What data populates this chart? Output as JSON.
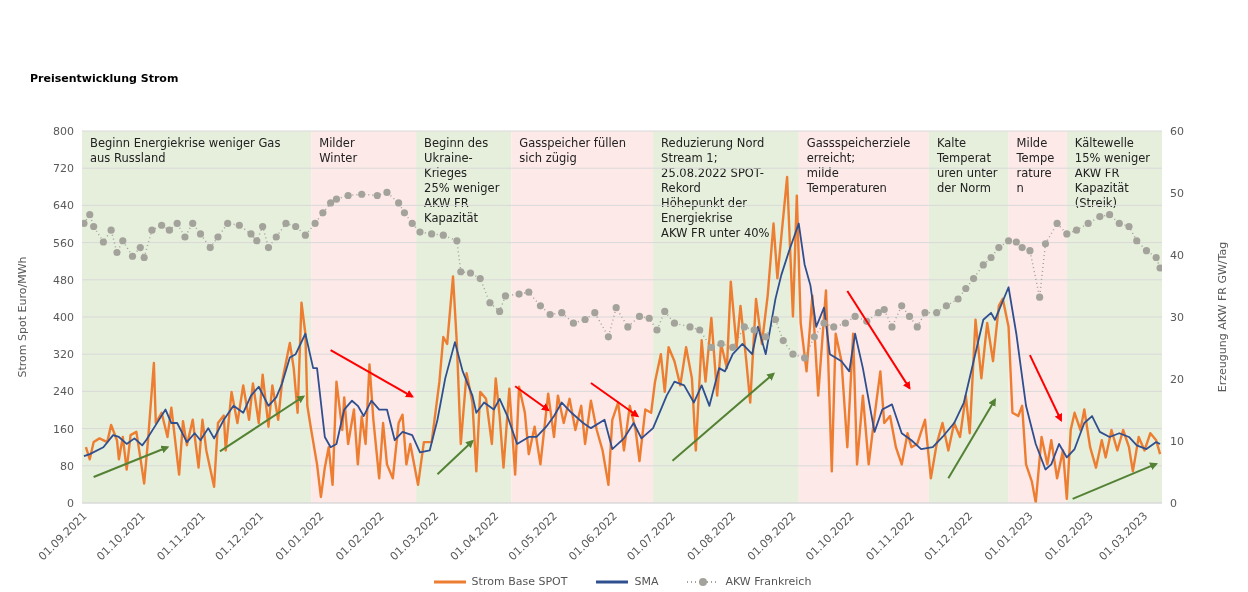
{
  "chart_data": {
    "type": "line",
    "title": "Preisentwicklung Strom",
    "ylabel": "Strom Spot Euro/MWh",
    "y2label": "Erzeugung AKW FR GW/Tag",
    "xlim": [
      "2021-09-01",
      "2023-03-11"
    ],
    "xticks": [
      {
        "value": "2021-09-01",
        "label": "01.09.2021"
      },
      {
        "value": "2021-10-01",
        "label": "01.10.2021"
      },
      {
        "value": "2021-11-01",
        "label": "01.11.2021"
      },
      {
        "value": "2021-12-01",
        "label": "01.12.2021"
      },
      {
        "value": "2022-01-01",
        "label": "01.01.2022"
      },
      {
        "value": "2022-02-01",
        "label": "01.02.2022"
      },
      {
        "value": "2022-03-01",
        "label": "01.03.2022"
      },
      {
        "value": "2022-04-01",
        "label": "01.04.2022"
      },
      {
        "value": "2022-05-01",
        "label": "01.05.2022"
      },
      {
        "value": "2022-06-01",
        "label": "01.06.2022"
      },
      {
        "value": "2022-07-01",
        "label": "01.07.2022"
      },
      {
        "value": "2022-08-01",
        "label": "01.08.2022"
      },
      {
        "value": "2022-09-01",
        "label": "01.09.2022"
      },
      {
        "value": "2022-10-01",
        "label": "01.10.2022"
      },
      {
        "value": "2022-11-01",
        "label": "01.11.2022"
      },
      {
        "value": "2022-12-01",
        "label": "01.12.2022"
      },
      {
        "value": "2023-01-01",
        "label": "01.01.2023"
      },
      {
        "value": "2023-02-01",
        "label": "01.02.2023"
      },
      {
        "value": "2023-03-01",
        "label": "01.03.2023"
      }
    ],
    "ylim": [
      0,
      800
    ],
    "yticks": [
      0,
      80,
      160,
      240,
      320,
      400,
      480,
      560,
      640,
      720,
      800
    ],
    "y2lim": [
      0,
      60
    ],
    "y2ticks": [
      0,
      10,
      20,
      30,
      40,
      50,
      60
    ],
    "grid": "y",
    "legend": "bottom",
    "bands": [
      {
        "axis": "x",
        "from": "2021-09-01",
        "to": "2021-12-28",
        "label": "Beginn Energiekrise weniger Gas\naus Russland",
        "color": "#e6efdc"
      },
      {
        "axis": "x",
        "from": "2021-12-28",
        "to": "2022-02-20",
        "label": "Milder\nWinter",
        "color": "#fde9e8"
      },
      {
        "axis": "x",
        "from": "2022-02-20",
        "to": "2022-04-10",
        "label": "Beginn des\nUkraine-\nKrieges\n25% weniger\nAKW FR\nKapazität",
        "color": "#e6efdc"
      },
      {
        "axis": "x",
        "from": "2022-04-10",
        "to": "2022-06-22",
        "label": "Gasspeicher füllen\nsich zügig",
        "color": "#fde9e8"
      },
      {
        "axis": "x",
        "from": "2022-06-22",
        "to": "2022-09-05",
        "label": "Reduzierung Nord\nStream 1;\n25.08.2022 SPOT-\nRekord\nHöhepunkt der\nEnergiekrise\nAKW FR unter 40%",
        "color": "#e6efdc"
      },
      {
        "axis": "x",
        "from": "2022-09-05",
        "to": "2022-11-11",
        "label": "Gassspeicherziele\nerreicht;\nmilde\nTemperaturen",
        "color": "#fde9e8"
      },
      {
        "axis": "x",
        "from": "2022-11-11",
        "to": "2022-12-22",
        "label": "Kalte\nTemperat\nuren unter\nder Norm",
        "color": "#e6efdc"
      },
      {
        "axis": "x",
        "from": "2022-12-22",
        "to": "2023-01-21",
        "label": "Milde\nTempe\nrature\nn",
        "color": "#fde9e8"
      },
      {
        "axis": "x",
        "from": "2023-01-21",
        "to": "2023-03-11",
        "label": "Kältewelle\n15% weniger\nAKW FR\nKapazität\n(Streik)",
        "color": "#e6efdc"
      }
    ],
    "series": [
      {
        "name": "Strom Base SPOT",
        "color": "#ed7d31",
        "x": [
          "2021-09-03",
          "2021-09-05",
          "2021-09-07",
          "2021-09-10",
          "2021-09-14",
          "2021-09-16",
          "2021-09-19",
          "2021-09-20",
          "2021-09-22",
          "2021-09-24",
          "2021-09-26",
          "2021-09-29",
          "2021-10-01",
          "2021-10-03",
          "2021-10-05",
          "2021-10-08",
          "2021-10-09",
          "2021-10-12",
          "2021-10-15",
          "2021-10-17",
          "2021-10-21",
          "2021-10-23",
          "2021-10-25",
          "2021-10-28",
          "2021-10-31",
          "2021-11-02",
          "2021-11-04",
          "2021-11-08",
          "2021-11-10",
          "2021-11-13",
          "2021-11-14",
          "2021-11-17",
          "2021-11-20",
          "2021-11-23",
          "2021-11-26",
          "2021-11-28",
          "2021-12-01",
          "2021-12-03",
          "2021-12-06",
          "2021-12-08",
          "2021-12-11",
          "2021-12-13",
          "2021-12-17",
          "2021-12-19",
          "2021-12-21",
          "2021-12-23",
          "2021-12-25",
          "2021-12-26",
          "2021-12-28",
          "2021-12-31",
          "2022-01-02",
          "2022-01-04",
          "2022-01-06",
          "2022-01-08",
          "2022-01-10",
          "2022-01-13",
          "2022-01-14",
          "2022-01-16",
          "2022-01-19",
          "2022-01-21",
          "2022-01-23",
          "2022-01-25",
          "2022-01-27",
          "2022-01-29",
          "2022-02-01",
          "2022-02-03",
          "2022-02-05",
          "2022-02-08",
          "2022-02-11",
          "2022-02-13",
          "2022-02-15",
          "2022-02-17",
          "2022-02-19",
          "2022-02-21",
          "2022-02-24",
          "2022-02-28",
          "2022-03-04",
          "2022-03-06",
          "2022-03-08",
          "2022-03-11",
          "2022-03-13",
          "2022-03-15",
          "2022-03-18",
          "2022-03-21",
          "2022-03-23",
          "2022-03-25",
          "2022-03-28",
          "2022-03-31",
          "2022-04-02",
          "2022-04-04",
          "2022-04-06",
          "2022-04-09",
          "2022-04-12",
          "2022-04-14",
          "2022-04-17",
          "2022-04-19",
          "2022-04-22",
          "2022-04-25",
          "2022-04-29",
          "2022-05-02",
          "2022-05-04",
          "2022-05-07",
          "2022-05-10",
          "2022-05-13",
          "2022-05-16",
          "2022-05-18",
          "2022-05-21",
          "2022-05-24",
          "2022-05-27",
          "2022-05-30",
          "2022-06-01",
          "2022-06-04",
          "2022-06-07",
          "2022-06-10",
          "2022-06-13",
          "2022-06-15",
          "2022-06-18",
          "2022-06-21",
          "2022-06-23",
          "2022-06-26",
          "2022-06-28",
          "2022-06-30",
          "2022-07-03",
          "2022-07-06",
          "2022-07-09",
          "2022-07-12",
          "2022-07-14",
          "2022-07-17",
          "2022-07-19",
          "2022-07-22",
          "2022-07-25",
          "2022-07-27",
          "2022-07-30",
          "2022-08-01",
          "2022-08-04",
          "2022-08-06",
          "2022-08-09",
          "2022-08-11",
          "2022-08-14",
          "2022-08-17",
          "2022-08-20",
          "2022-08-23",
          "2022-08-25",
          "2022-08-27",
          "2022-08-30",
          "2022-09-02",
          "2022-09-04",
          "2022-09-06",
          "2022-09-09",
          "2022-09-12",
          "2022-09-15",
          "2022-09-19",
          "2022-09-22",
          "2022-09-24",
          "2022-09-27",
          "2022-09-30",
          "2022-10-03",
          "2022-10-05",
          "2022-10-08",
          "2022-10-11",
          "2022-10-14",
          "2022-10-17",
          "2022-10-19",
          "2022-10-22",
          "2022-10-25",
          "2022-10-28",
          "2022-10-31",
          "2022-11-02",
          "2022-11-05",
          "2022-11-09",
          "2022-11-12",
          "2022-11-15",
          "2022-11-18",
          "2022-11-21",
          "2022-11-24",
          "2022-11-27",
          "2022-11-30",
          "2022-12-02",
          "2022-12-05",
          "2022-12-08",
          "2022-12-11",
          "2022-12-14",
          "2022-12-17",
          "2022-12-19",
          "2022-12-22",
          "2022-12-24",
          "2022-12-27",
          "2022-12-29",
          "2022-12-31",
          "2023-01-03",
          "2023-01-05",
          "2023-01-08",
          "2023-01-11",
          "2023-01-13",
          "2023-01-16",
          "2023-01-19",
          "2023-01-21",
          "2023-01-23",
          "2023-01-25",
          "2023-01-28",
          "2023-01-30",
          "2023-02-02",
          "2023-02-05",
          "2023-02-08",
          "2023-02-10",
          "2023-02-13",
          "2023-02-16",
          "2023-02-19",
          "2023-02-22",
          "2023-02-24",
          "2023-02-27",
          "2023-03-02",
          "2023-03-05",
          "2023-03-08",
          "2023-03-10"
        ],
        "values": [
          120,
          94,
          131,
          139,
          131,
          168,
          135,
          94,
          142,
          72,
          146,
          153,
          98,
          42,
          135,
          301,
          172,
          194,
          142,
          205,
          61,
          176,
          124,
          179,
          76,
          179,
          113,
          35,
          172,
          188,
          113,
          239,
          172,
          253,
          179,
          257,
          172,
          276,
          164,
          253,
          179,
          261,
          344,
          290,
          194,
          431,
          364,
          209,
          157,
          83,
          13,
          76,
          120,
          39,
          261,
          157,
          227,
          127,
          201,
          83,
          186,
          127,
          298,
          179,
          53,
          172,
          83,
          53,
          172,
          190,
          83,
          127,
          83,
          39,
          131,
          131,
          261,
          357,
          342,
          487,
          342,
          127,
          279,
          216,
          68,
          239,
          224,
          127,
          268,
          187,
          76,
          246,
          61,
          250,
          194,
          105,
          164,
          83,
          235,
          142,
          231,
          172,
          224,
          157,
          209,
          127,
          220,
          157,
          113,
          39,
          179,
          216,
          113,
          209,
          157,
          90,
          201,
          194,
          261,
          320,
          239,
          335,
          305,
          253,
          335,
          268,
          113,
          350,
          261,
          398,
          231,
          342,
          290,
          476,
          335,
          424,
          305,
          216,
          439,
          342,
          446,
          601,
          483,
          572,
          701,
          401,
          661,
          387,
          283,
          446,
          231,
          457,
          68,
          364,
          305,
          120,
          364,
          83,
          231,
          83,
          187,
          283,
          172,
          187,
          120,
          83,
          150,
          120,
          127,
          179,
          53,
          127,
          172,
          113,
          172,
          142,
          231,
          150,
          394,
          268,
          387,
          305,
          424,
          439,
          379,
          194,
          187,
          209,
          83,
          46,
          1,
          142,
          83,
          135,
          53,
          113,
          9,
          157,
          194,
          157,
          201,
          120,
          76,
          135,
          98,
          157,
          113,
          157,
          120,
          68,
          142,
          113,
          150,
          135,
          105
        ]
      },
      {
        "name": "SMA",
        "color": "#2f4f8f",
        "x": [
          "2021-09-02",
          "2021-09-05",
          "2021-09-12",
          "2021-09-17",
          "2021-09-20",
          "2021-09-24",
          "2021-09-28",
          "2021-10-02",
          "2021-10-04",
          "2021-10-09",
          "2021-10-14",
          "2021-10-17",
          "2021-10-20",
          "2021-10-25",
          "2021-10-29",
          "2021-11-01",
          "2021-11-05",
          "2021-11-08",
          "2021-11-13",
          "2021-11-18",
          "2021-11-23",
          "2021-11-27",
          "2021-12-01",
          "2021-12-06",
          "2021-12-10",
          "2021-12-13",
          "2021-12-17",
          "2021-12-20",
          "2021-12-25",
          "2021-12-29",
          "2021-12-31",
          "2022-01-04",
          "2022-01-07",
          "2022-01-10",
          "2022-01-14",
          "2022-01-18",
          "2022-01-21",
          "2022-01-24",
          "2022-01-28",
          "2022-02-01",
          "2022-02-05",
          "2022-02-09",
          "2022-02-13",
          "2022-02-18",
          "2022-02-22",
          "2022-02-27",
          "2022-03-03",
          "2022-03-07",
          "2022-03-12",
          "2022-03-16",
          "2022-03-21",
          "2022-03-23",
          "2022-03-27",
          "2022-04-01",
          "2022-04-04",
          "2022-04-08",
          "2022-04-13",
          "2022-04-19",
          "2022-04-23",
          "2022-04-28",
          "2022-05-02",
          "2022-05-06",
          "2022-05-11",
          "2022-05-17",
          "2022-05-21",
          "2022-05-28",
          "2022-06-01",
          "2022-06-07",
          "2022-06-12",
          "2022-06-16",
          "2022-06-22",
          "2022-06-26",
          "2022-06-29",
          "2022-07-03",
          "2022-07-08",
          "2022-07-13",
          "2022-07-17",
          "2022-07-21",
          "2022-07-26",
          "2022-07-29",
          "2022-08-02",
          "2022-08-07",
          "2022-08-12",
          "2022-08-15",
          "2022-08-19",
          "2022-08-24",
          "2022-08-27",
          "2022-08-31",
          "2022-09-05",
          "2022-09-08",
          "2022-09-11",
          "2022-09-14",
          "2022-09-18",
          "2022-09-21",
          "2022-09-27",
          "2022-10-01",
          "2022-10-04",
          "2022-10-08",
          "2022-10-14",
          "2022-10-18",
          "2022-10-23",
          "2022-10-28",
          "2022-11-02",
          "2022-11-07",
          "2022-11-13",
          "2022-11-18",
          "2022-11-24",
          "2022-11-29",
          "2022-12-04",
          "2022-12-09",
          "2022-12-13",
          "2022-12-15",
          "2022-12-22",
          "2022-12-26",
          "2022-12-31",
          "2023-01-05",
          "2023-01-10",
          "2023-01-13",
          "2023-01-17",
          "2023-01-21",
          "2023-01-25",
          "2023-01-30",
          "2023-02-03",
          "2023-02-07",
          "2023-02-12",
          "2023-02-17",
          "2023-02-22",
          "2023-02-26",
          "2023-03-03",
          "2023-03-08",
          "2023-03-10"
        ],
        "values": [
          101,
          105,
          120,
          146,
          142,
          127,
          139,
          124,
          135,
          168,
          201,
          172,
          172,
          131,
          150,
          135,
          161,
          139,
          179,
          209,
          194,
          231,
          250,
          209,
          227,
          257,
          313,
          320,
          364,
          290,
          290,
          142,
          120,
          127,
          201,
          220,
          209,
          187,
          220,
          201,
          201,
          135,
          153,
          146,
          109,
          113,
          179,
          268,
          346,
          283,
          231,
          194,
          216,
          201,
          224,
          187,
          127,
          142,
          142,
          164,
          187,
          216,
          194,
          172,
          161,
          179,
          116,
          139,
          172,
          139,
          161,
          201,
          231,
          261,
          253,
          216,
          253,
          209,
          290,
          283,
          320,
          342,
          320,
          379,
          320,
          439,
          490,
          542,
          601,
          513,
          468,
          379,
          420,
          320,
          305,
          283,
          364,
          290,
          153,
          201,
          212,
          150,
          135,
          116,
          120,
          142,
          172,
          216,
          305,
          394,
          409,
          394,
          464,
          364,
          209,
          127,
          72,
          83,
          127,
          98,
          116,
          172,
          187,
          153,
          142,
          150,
          142,
          124,
          116,
          131,
          127
        ]
      },
      {
        "name": "AKW Frankreich",
        "color": "#a3a39b",
        "axis": "y2",
        "marker": "circle",
        "line_style": "dotted",
        "x": [
          "2021-09-02",
          "2021-09-05",
          "2021-09-07",
          "2021-09-12",
          "2021-09-16",
          "2021-09-19",
          "2021-09-22",
          "2021-09-27",
          "2021-10-01",
          "2021-10-03",
          "2021-10-07",
          "2021-10-12",
          "2021-10-16",
          "2021-10-20",
          "2021-10-24",
          "2021-10-28",
          "2021-11-01",
          "2021-11-06",
          "2021-11-10",
          "2021-11-15",
          "2021-11-21",
          "2021-11-27",
          "2021-11-30",
          "2021-12-03",
          "2021-12-06",
          "2021-12-10",
          "2021-12-15",
          "2021-12-20",
          "2021-12-25",
          "2021-12-30",
          "2022-01-03",
          "2022-01-07",
          "2022-01-10",
          "2022-01-16",
          "2022-01-23",
          "2022-01-31",
          "2022-02-05",
          "2022-02-11",
          "2022-02-14",
          "2022-02-18",
          "2022-02-22",
          "2022-02-28",
          "2022-03-06",
          "2022-03-13",
          "2022-03-15",
          "2022-03-20",
          "2022-03-25",
          "2022-03-30",
          "2022-04-04",
          "2022-04-07",
          "2022-04-14",
          "2022-04-19",
          "2022-04-25",
          "2022-04-30",
          "2022-05-06",
          "2022-05-12",
          "2022-05-18",
          "2022-05-23",
          "2022-05-30",
          "2022-06-03",
          "2022-06-09",
          "2022-06-15",
          "2022-06-20",
          "2022-06-24",
          "2022-06-28",
          "2022-07-03",
          "2022-07-11",
          "2022-07-16",
          "2022-07-22",
          "2022-07-27",
          "2022-08-02",
          "2022-08-08",
          "2022-08-13",
          "2022-08-19",
          "2022-08-24",
          "2022-08-28",
          "2022-09-02",
          "2022-09-08",
          "2022-09-13",
          "2022-09-18",
          "2022-09-23",
          "2022-09-29",
          "2022-10-04",
          "2022-10-10",
          "2022-10-16",
          "2022-10-19",
          "2022-10-23",
          "2022-10-28",
          "2022-11-01",
          "2022-11-05",
          "2022-11-09",
          "2022-11-15",
          "2022-11-20",
          "2022-11-26",
          "2022-11-30",
          "2022-12-04",
          "2022-12-09",
          "2022-12-13",
          "2022-12-17",
          "2022-12-22",
          "2022-12-26",
          "2022-12-29",
          "2023-01-02",
          "2023-01-07",
          "2023-01-10",
          "2023-01-16",
          "2023-01-21",
          "2023-01-26",
          "2023-02-01",
          "2023-02-07",
          "2023-02-12",
          "2023-02-17",
          "2023-02-22",
          "2023-02-26",
          "2023-03-03",
          "2023-03-08",
          "2023-03-10"
        ],
        "values": [
          45.1,
          46.5,
          44.6,
          42.1,
          44,
          40.4,
          42.3,
          39.8,
          41.2,
          39.6,
          44,
          44.8,
          44,
          45.1,
          42.9,
          45.1,
          43.4,
          41.2,
          42.9,
          45.1,
          44.8,
          43.4,
          42.3,
          44.6,
          41.2,
          42.9,
          45.1,
          44.6,
          43.2,
          45.1,
          46.8,
          48.4,
          49,
          49.6,
          49.8,
          49.6,
          50.1,
          48.4,
          46.8,
          45.1,
          43.7,
          43.4,
          43.2,
          42.3,
          37.3,
          37.1,
          36.2,
          32.3,
          30.9,
          33.4,
          33.7,
          34,
          31.8,
          30.4,
          30.7,
          29,
          29.6,
          30.7,
          26.8,
          31.5,
          28.4,
          30.1,
          29.8,
          27.9,
          30.9,
          29,
          28.4,
          27.9,
          25.1,
          25.7,
          25.1,
          28.4,
          27.9,
          26.8,
          29.6,
          26.2,
          24,
          23.4,
          26.8,
          29,
          28.4,
          29,
          30.1,
          29.3,
          30.7,
          31.2,
          28.4,
          31.8,
          30.1,
          28.4,
          30.7,
          30.7,
          31.8,
          32.9,
          34.6,
          36.2,
          38.4,
          39.6,
          41.2,
          42.3,
          42.1,
          41.2,
          40.7,
          33.2,
          41.8,
          45.1,
          43.4,
          44,
          45.1,
          46.2,
          46.5,
          45.1,
          44.6,
          42.3,
          40.7,
          39.6,
          37.9
        ]
      }
    ]
  }
}
